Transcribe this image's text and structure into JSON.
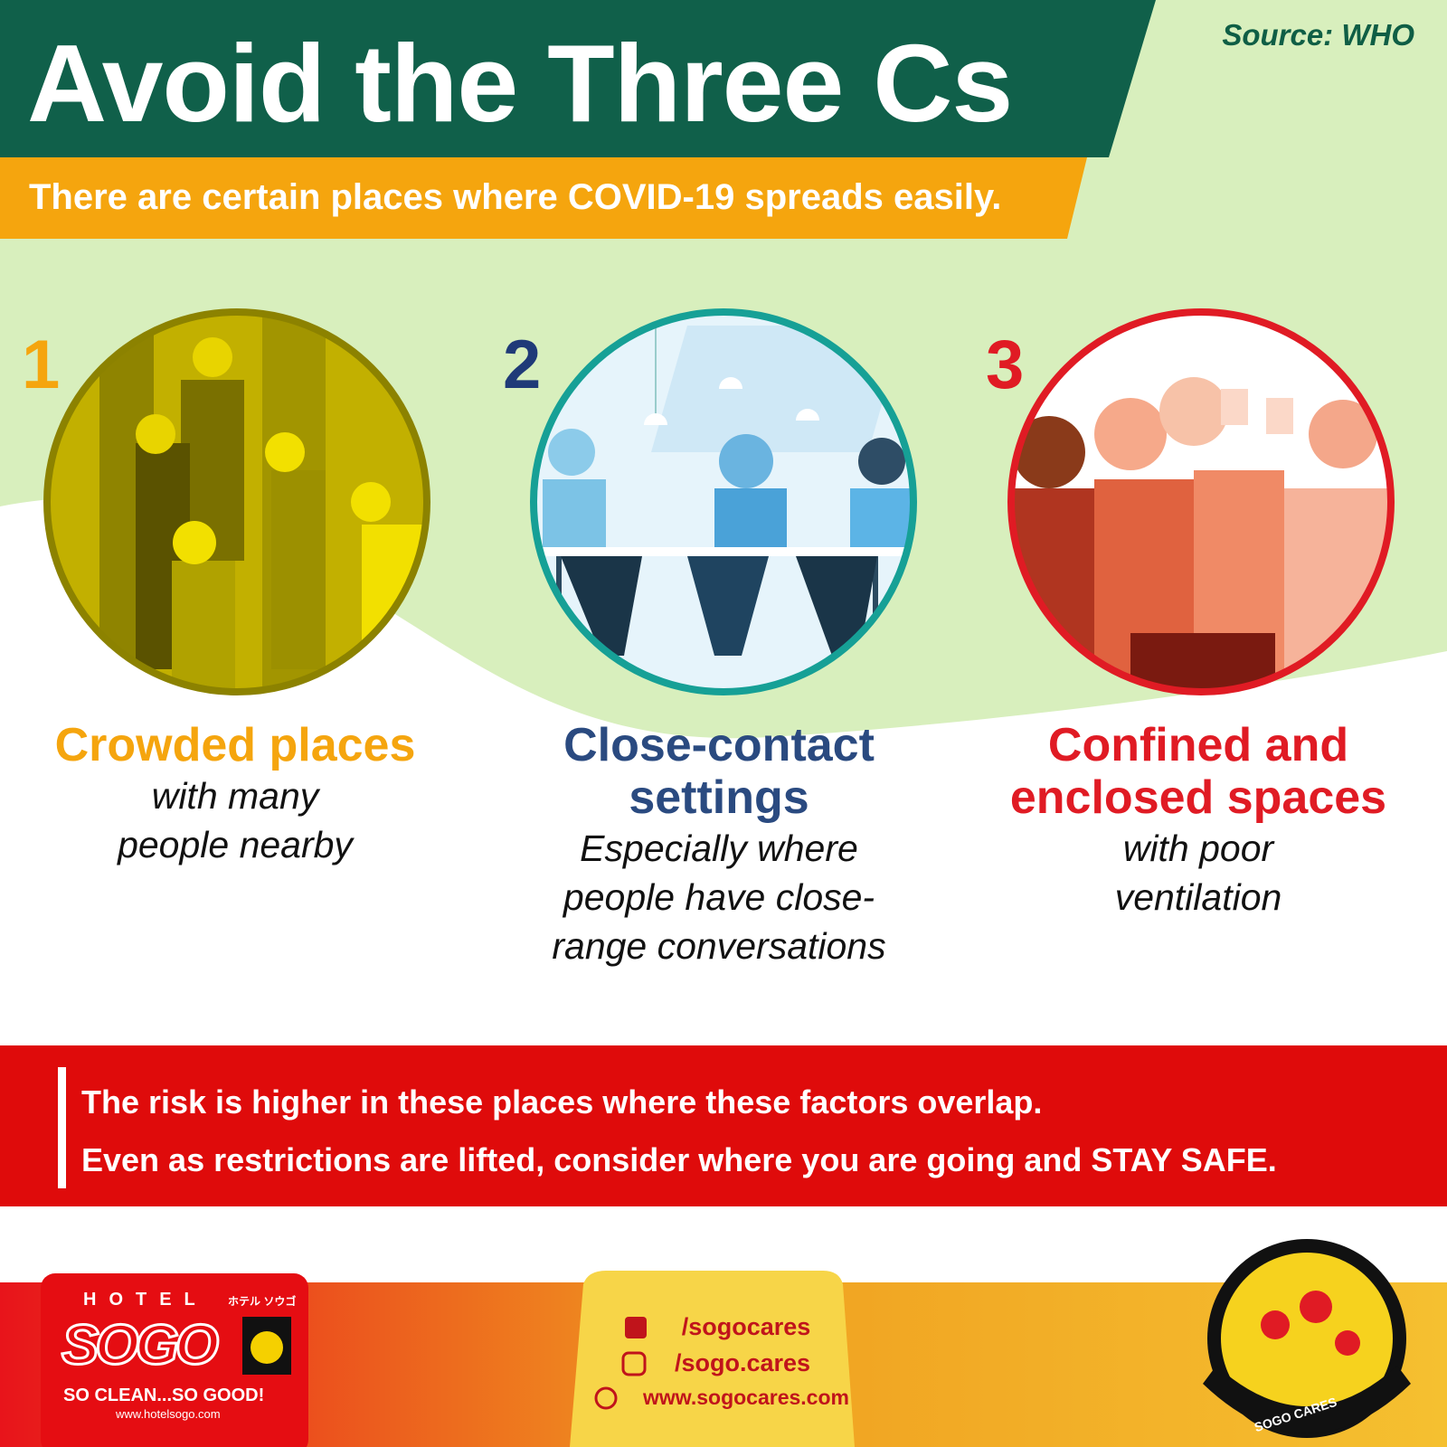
{
  "header": {
    "title": "Avoid the Three Cs",
    "subtitle": "There are certain places where COVID-19 spreads easily.",
    "source": "Source: WHO"
  },
  "items": [
    {
      "number": "1",
      "heading": "Crowded places",
      "description": "with many people nearby"
    },
    {
      "number": "2",
      "heading": "Close-contact settings",
      "description": "Especially where people have close-range conversations"
    },
    {
      "number": "3",
      "heading": "Confined and enclosed spaces",
      "description": "with poor ventilation"
    }
  ],
  "banner": {
    "lines": [
      "The risk is higher in these places where these factors overlap.",
      "Even as restrictions are lifted, consider where you are going and STAY SAFE."
    ]
  },
  "footer": {
    "logo": {
      "hotel": "HOTEL",
      "japanese": "ホテル ソウゴ",
      "brand": "SOGO",
      "slogan": "SO CLEAN...SO GOOD!",
      "website": "www.hotelsogo.com"
    },
    "links": [
      "/sogocares",
      "/sogo.cares",
      "www.sogocares.com"
    ],
    "badge": "SOGO CARES"
  }
}
